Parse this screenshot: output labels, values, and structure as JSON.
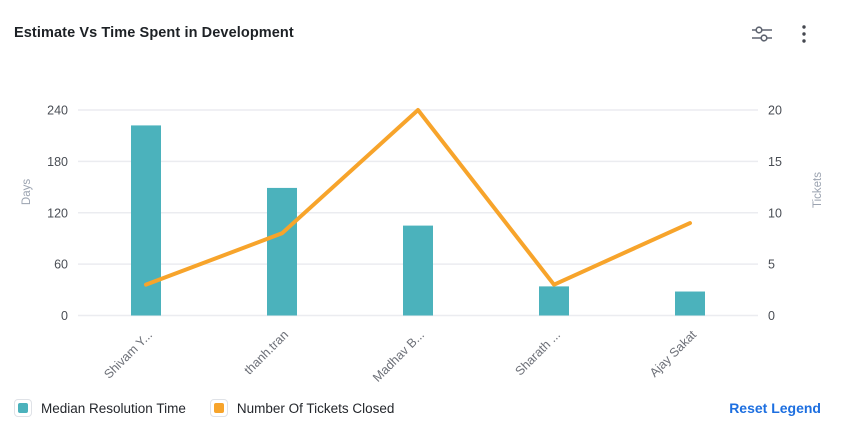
{
  "header": {
    "title": "Estimate Vs Time Spent in Development",
    "icons": [
      {
        "name": "settings-sliders-icon"
      },
      {
        "name": "more-menu-icon"
      }
    ]
  },
  "chart_data": {
    "type": "combo",
    "title": "Estimate Vs Time Spent in Development",
    "categories": [
      "Shivam Y...",
      "thanh.tran",
      "Madhav B...",
      "Sharath ...",
      "Ajay Sakat"
    ],
    "series": [
      {
        "name": "Median Resolution Time",
        "type": "bar",
        "axis": "left",
        "color": "#4BB2BC",
        "values": [
          222,
          149,
          105,
          34,
          28
        ]
      },
      {
        "name": "Number Of Tickets Closed",
        "type": "line",
        "axis": "right",
        "color": "#F7A42B",
        "values": [
          3,
          8,
          20,
          3,
          9
        ]
      }
    ],
    "left_axis": {
      "label": "Days",
      "min": 0,
      "max": 240,
      "ticks": [
        0,
        60,
        120,
        180,
        240
      ]
    },
    "right_axis": {
      "label": "Tickets",
      "min": 0,
      "max": 20,
      "ticks": [
        0,
        5,
        10,
        15,
        20
      ]
    },
    "grid": true,
    "legend_position": "bottom",
    "x_label_rotation": -45
  },
  "legend": {
    "reset_label": "Reset Legend"
  },
  "colors": {
    "bar": "#4BB2BC",
    "line": "#F7A42B",
    "gridline": "#EBECF0",
    "tick_text": "#4a4e55",
    "x_label_text": "#6c6f77",
    "axis_name_text": "#9ba3b0",
    "title_text": "#1d2125",
    "reset_link": "#1d6fe0"
  }
}
